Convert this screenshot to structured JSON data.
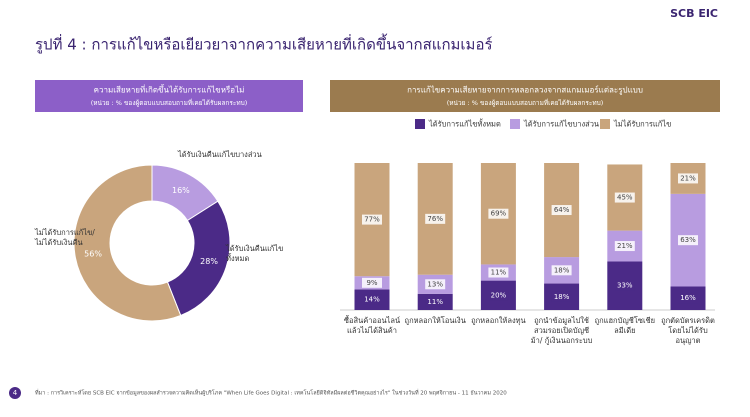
{
  "logo": "SCB EIC",
  "title": "รูปที่ 4 : การแก้ไขหรือเยียวยาจากความเสียหายที่เกิดขึ้นจากสแกมเมอร์",
  "page_number": "4",
  "source": "ที่มา : การวิเคราะห์โดย SCB EIC จากข้อมูลของผลสำรวจความคิดเห็นผู้บริโภค \"When Life Goes Digital : เทคโนโลยีดิจิทัลมีผลต่อชีวิตคุณอย่างไร\" ในช่วงวันที่ 20 พฤศจิกายน - 11 ธันวาคม 2020",
  "chart_data": [
    {
      "type": "pie",
      "donut": true,
      "title": "ความเสียหายที่เกิดขึ้นได้รับการแก้ไขหรือไม่",
      "subtitle": "(หน่วย : % ของผู้ตอบแบบสอบถามที่เคยได้รับผลกระทบ)",
      "categories": [
        "ได้รับเงินคืนแก้ไขบางส่วน",
        "ได้รับเงินคืนแก้ไขทั้งหมด",
        "ไม่ได้รับการแก้ไข/ ไม่ได้รับเงินคืน"
      ],
      "values": [
        16,
        28,
        56
      ],
      "value_labels": [
        "16%",
        "28%",
        "56%"
      ],
      "colors": [
        "#b89ce0",
        "#4b2a87",
        "#c9a57d"
      ]
    },
    {
      "type": "bar",
      "stacked": true,
      "title": "การแก้ไขความเสียหายจากการหลอกลวงจากสแกมเมอร์แต่ละรูปแบบ",
      "subtitle": "(หน่วย : % ของผู้ตอบแบบสอบถามที่เคยได้รับผลกระทบ)",
      "categories": [
        "ซื้อสินค้าออนไลน์แล้วไม่ได้สินค้า",
        "ถูกหลอกให้โอนเงิน",
        "ถูกหลอกให้ลงทุน",
        "ถูกนำข้อมูลไปใช้ สวมรอยเปิดบัญชีม้า/ กู้เงินนอกระบบ",
        "ถูกแฮกบัญชีโซเชียลมีเดีย",
        "ถูกตัดบัตรเครดิตโดยไม่ได้รับอนุญาต"
      ],
      "series": [
        {
          "name": "ได้รับการแก้ไขทั้งหมด",
          "color": "#4b2a87",
          "values": [
            14,
            11,
            20,
            18,
            33,
            16
          ],
          "value_labels": [
            "14%",
            "11%",
            "20%",
            "18%",
            "33%",
            "16%"
          ]
        },
        {
          "name": "ได้รับการแก้ไขบางส่วน",
          "color": "#b89ce0",
          "values": [
            9,
            13,
            11,
            18,
            21,
            63
          ],
          "value_labels": [
            "9%",
            "13%",
            "11%",
            "18%",
            "21%",
            "63%"
          ]
        },
        {
          "name": "ไม่ได้รับการแก้ไข",
          "color": "#c9a57d",
          "values": [
            77,
            76,
            69,
            64,
            45,
            21
          ],
          "value_labels": [
            "77%",
            "76%",
            "69%",
            "64%",
            "45%",
            "21%"
          ]
        }
      ]
    }
  ]
}
